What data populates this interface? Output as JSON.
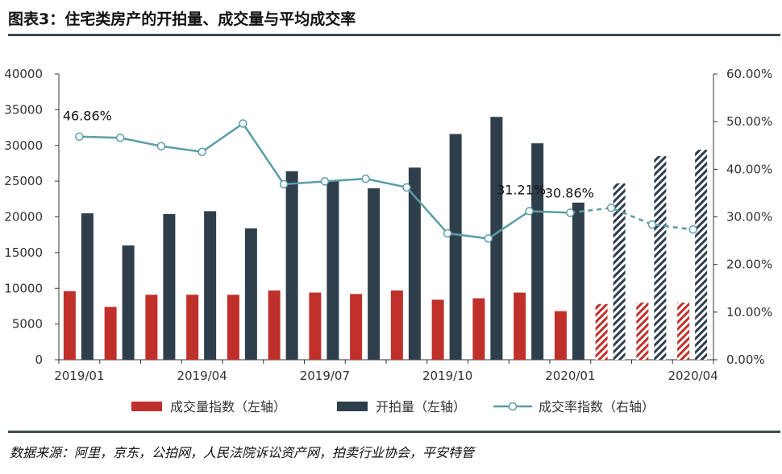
{
  "header": {
    "title": "图表3：住宅类房产的开拍量、成交量与平均成交率"
  },
  "footer": {
    "source": "数据来源：阿里，京东，公拍网，人民法院诉讼资产网，拍卖行业协会，平安特管"
  },
  "colors": {
    "deal_volume": "#c0302b",
    "auction_volume": "#2f3e4b",
    "deal_rate": "#5b9ca7",
    "rule": "#3d4a55"
  },
  "chart_data": {
    "type": "bar",
    "categories": [
      "2019/01",
      "2019/02",
      "2019/03",
      "2019/04",
      "2019/05",
      "2019/06",
      "2019/07",
      "2019/08",
      "2019/09",
      "2019/10",
      "2019/11",
      "2019/12",
      "2020/01",
      "2020/02",
      "2020/03",
      "2020/04"
    ],
    "x_tick_labels": [
      "2019/01",
      "2019/04",
      "2019/07",
      "2019/10",
      "2020/01",
      "2020/04"
    ],
    "x_tick_categories": [
      "2019/01",
      "2019/04",
      "2019/07",
      "2019/10",
      "2020/01",
      "2020/04"
    ],
    "estimated_from": "2020/02",
    "y_left": {
      "ylim": [
        0,
        40000
      ],
      "ticks": [
        "0",
        "5000",
        "10000",
        "15000",
        "20000",
        "25000",
        "30000",
        "35000",
        "40000"
      ]
    },
    "y_right": {
      "ylim": [
        0,
        0.6
      ],
      "ticks": [
        "0.00%",
        "10.00%",
        "20.00%",
        "30.00%",
        "40.00%",
        "50.00%",
        "60.00%"
      ]
    },
    "series": [
      {
        "name": "成交量指数（左轴）",
        "type": "bar",
        "axis": "left",
        "values": [
          9600,
          7400,
          9100,
          9100,
          9100,
          9700,
          9400,
          9200,
          9700,
          8400,
          8600,
          9400,
          6800,
          7800,
          8000,
          8000
        ]
      },
      {
        "name": "开拍量（左轴）",
        "type": "bar",
        "axis": "left",
        "values": [
          20500,
          16000,
          20400,
          20800,
          18400,
          26400,
          25100,
          24000,
          26900,
          31600,
          34000,
          30300,
          22000,
          24700,
          28500,
          29400
        ]
      },
      {
        "name": "成交率指数（右轴）",
        "type": "line",
        "axis": "right",
        "values": [
          0.4686,
          0.466,
          0.4485,
          0.4365,
          0.496,
          0.3685,
          0.3745,
          0.38,
          0.362,
          0.2655,
          0.2545,
          0.3121,
          0.3086,
          0.319,
          0.284,
          0.2735
        ]
      }
    ],
    "annotations": [
      {
        "category": "2019/01",
        "text": "46.86%"
      },
      {
        "category": "2019/12",
        "text": "31.21%"
      },
      {
        "category": "2020/01",
        "text": "30.86%"
      }
    ],
    "legend": {
      "placement": "bottom"
    },
    "grid": false
  }
}
